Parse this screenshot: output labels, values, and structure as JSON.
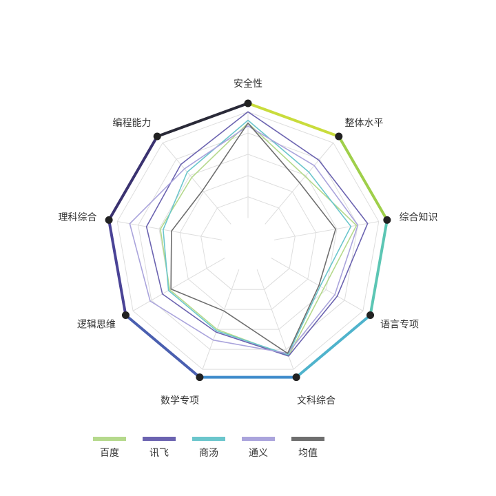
{
  "chart_data": {
    "type": "radar",
    "axes": [
      "安全性",
      "整体水平",
      "综合知识",
      "语言专项",
      "文科综合",
      "数学专项",
      "逻辑思维",
      "理科综合",
      "编程能力"
    ],
    "rmax": 1.0,
    "grid_levels": 5,
    "grid": true,
    "legend_position": "bottom",
    "series": [
      {
        "name": "百度",
        "color": "#b5d98c",
        "values": [
          0.86,
          0.63,
          0.78,
          0.62,
          0.84,
          0.64,
          0.64,
          0.63,
          0.62
        ]
      },
      {
        "name": "讯飞",
        "color": "#6b63b0",
        "values": [
          0.94,
          0.78,
          0.86,
          0.73,
          0.84,
          0.66,
          0.7,
          0.73,
          0.74
        ]
      },
      {
        "name": "商汤",
        "color": "#6bc6cc",
        "values": [
          0.88,
          0.67,
          0.74,
          0.59,
          0.83,
          0.65,
          0.65,
          0.61,
          0.67
        ]
      },
      {
        "name": "通义",
        "color": "#aaa4dc",
        "values": [
          0.84,
          0.73,
          0.79,
          0.71,
          0.82,
          0.72,
          0.8,
          0.85,
          0.7
        ]
      },
      {
        "name": "均值",
        "color": "#6e6e6e",
        "values": [
          0.86,
          0.57,
          0.63,
          0.58,
          0.82,
          0.5,
          0.63,
          0.55,
          0.5
        ]
      }
    ]
  }
}
